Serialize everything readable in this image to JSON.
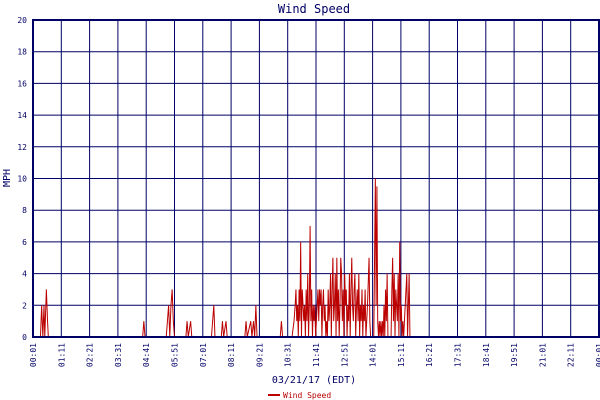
{
  "chart_data": {
    "type": "line",
    "title": "Wind Speed",
    "xlabel": "03/21/17 (EDT)",
    "ylabel": "MPH",
    "ylim": [
      0,
      20
    ],
    "yticks": [
      0,
      2,
      4,
      6,
      8,
      10,
      12,
      14,
      16,
      18,
      20
    ],
    "xticks": [
      "00:01",
      "01:11",
      "02:21",
      "03:31",
      "04:41",
      "05:51",
      "07:01",
      "08:11",
      "09:21",
      "10:31",
      "11:41",
      "12:51",
      "14:01",
      "15:11",
      "16:21",
      "17:31",
      "18:41",
      "19:51",
      "21:01",
      "22:11",
      "00:01"
    ],
    "x_range_minutes": [
      1,
      1441
    ],
    "grid": true,
    "legend": "bottom",
    "colors": {
      "series": "#bb0000",
      "grid": "#000066",
      "text": "#000066",
      "background": "#ffffff"
    },
    "series": [
      {
        "name": "Wind Speed",
        "points": [
          [
            1,
            0
          ],
          [
            20,
            0
          ],
          [
            23,
            2
          ],
          [
            26,
            0
          ],
          [
            29,
            2
          ],
          [
            31,
            0
          ],
          [
            35,
            3
          ],
          [
            38,
            1
          ],
          [
            40,
            0
          ],
          [
            280,
            0
          ],
          [
            283,
            1
          ],
          [
            286,
            0
          ],
          [
            340,
            0
          ],
          [
            343,
            1
          ],
          [
            346,
            2
          ],
          [
            349,
            0
          ],
          [
            352,
            2
          ],
          [
            355,
            3
          ],
          [
            358,
            1
          ],
          [
            361,
            0
          ],
          [
            390,
            0
          ],
          [
            393,
            1
          ],
          [
            396,
            0
          ],
          [
            402,
            1
          ],
          [
            405,
            0
          ],
          [
            455,
            0
          ],
          [
            458,
            1
          ],
          [
            461,
            2
          ],
          [
            464,
            0
          ],
          [
            480,
            0
          ],
          [
            483,
            1
          ],
          [
            486,
            0
          ],
          [
            492,
            1
          ],
          [
            495,
            0
          ],
          [
            540,
            0
          ],
          [
            543,
            1
          ],
          [
            546,
            0
          ],
          [
            555,
            1
          ],
          [
            558,
            0
          ],
          [
            562,
            1
          ],
          [
            565,
            0
          ],
          [
            568,
            2
          ],
          [
            571,
            0
          ],
          [
            630,
            0
          ],
          [
            633,
            1
          ],
          [
            636,
            0
          ],
          [
            660,
            0
          ],
          [
            665,
            1
          ],
          [
            668,
            2
          ],
          [
            670,
            3
          ],
          [
            672,
            1
          ],
          [
            674,
            2
          ],
          [
            676,
            0
          ],
          [
            678,
            3
          ],
          [
            680,
            1
          ],
          [
            682,
            6
          ],
          [
            684,
            0
          ],
          [
            686,
            3
          ],
          [
            688,
            2
          ],
          [
            690,
            1
          ],
          [
            692,
            2
          ],
          [
            694,
            0
          ],
          [
            696,
            3
          ],
          [
            698,
            1
          ],
          [
            700,
            4
          ],
          [
            702,
            0
          ],
          [
            704,
            2
          ],
          [
            706,
            7
          ],
          [
            708,
            1
          ],
          [
            710,
            3
          ],
          [
            712,
            0
          ],
          [
            714,
            2
          ],
          [
            716,
            1
          ],
          [
            718,
            2
          ],
          [
            720,
            0
          ],
          [
            726,
            3
          ],
          [
            728,
            1
          ],
          [
            730,
            3
          ],
          [
            732,
            2
          ],
          [
            734,
            3
          ],
          [
            736,
            0
          ],
          [
            738,
            2
          ],
          [
            740,
            3
          ],
          [
            742,
            1
          ],
          [
            744,
            2
          ],
          [
            746,
            0
          ],
          [
            748,
            1
          ],
          [
            750,
            0
          ],
          [
            752,
            3
          ],
          [
            754,
            1
          ],
          [
            756,
            2
          ],
          [
            758,
            4
          ],
          [
            760,
            0
          ],
          [
            762,
            3
          ],
          [
            764,
            5
          ],
          [
            766,
            1
          ],
          [
            768,
            2
          ],
          [
            770,
            4
          ],
          [
            772,
            0
          ],
          [
            774,
            5
          ],
          [
            776,
            1
          ],
          [
            778,
            3
          ],
          [
            780,
            0
          ],
          [
            782,
            2
          ],
          [
            784,
            5
          ],
          [
            786,
            4
          ],
          [
            788,
            1
          ],
          [
            790,
            3
          ],
          [
            792,
            0
          ],
          [
            794,
            4
          ],
          [
            796,
            2
          ],
          [
            798,
            3
          ],
          [
            800,
            0
          ],
          [
            802,
            2
          ],
          [
            804,
            1
          ],
          [
            806,
            4
          ],
          [
            808,
            0
          ],
          [
            810,
            3
          ],
          [
            812,
            5
          ],
          [
            814,
            2
          ],
          [
            816,
            1
          ],
          [
            818,
            3
          ],
          [
            820,
            4
          ],
          [
            822,
            0
          ],
          [
            824,
            2
          ],
          [
            826,
            3
          ],
          [
            828,
            1
          ],
          [
            830,
            4
          ],
          [
            832,
            0
          ],
          [
            834,
            2
          ],
          [
            836,
            1
          ],
          [
            838,
            3
          ],
          [
            840,
            0
          ],
          [
            842,
            2
          ],
          [
            844,
            1
          ],
          [
            846,
            3
          ],
          [
            848,
            0
          ],
          [
            852,
            2
          ],
          [
            856,
            5
          ],
          [
            858,
            1
          ],
          [
            860,
            0
          ],
          [
            868,
            0
          ],
          [
            872,
            10
          ],
          [
            874,
            2
          ],
          [
            876,
            9.5
          ],
          [
            878,
            1
          ],
          [
            880,
            0
          ],
          [
            882,
            1
          ],
          [
            884,
            0
          ],
          [
            886,
            1
          ],
          [
            888,
            0
          ],
          [
            890,
            1
          ],
          [
            892,
            0
          ],
          [
            894,
            2
          ],
          [
            896,
            0
          ],
          [
            898,
            3
          ],
          [
            900,
            1
          ],
          [
            902,
            4
          ],
          [
            904,
            0
          ],
          [
            912,
            0
          ],
          [
            914,
            3
          ],
          [
            916,
            5
          ],
          [
            918,
            1
          ],
          [
            920,
            4
          ],
          [
            922,
            0
          ],
          [
            924,
            3
          ],
          [
            926,
            2
          ],
          [
            928,
            1
          ],
          [
            930,
            4
          ],
          [
            932,
            0
          ],
          [
            934,
            6
          ],
          [
            936,
            1
          ],
          [
            938,
            2
          ],
          [
            940,
            0
          ],
          [
            942,
            1
          ],
          [
            944,
            0
          ],
          [
            950,
            3
          ],
          [
            952,
            4
          ],
          [
            954,
            0
          ],
          [
            958,
            4
          ],
          [
            960,
            0
          ]
        ]
      }
    ]
  }
}
